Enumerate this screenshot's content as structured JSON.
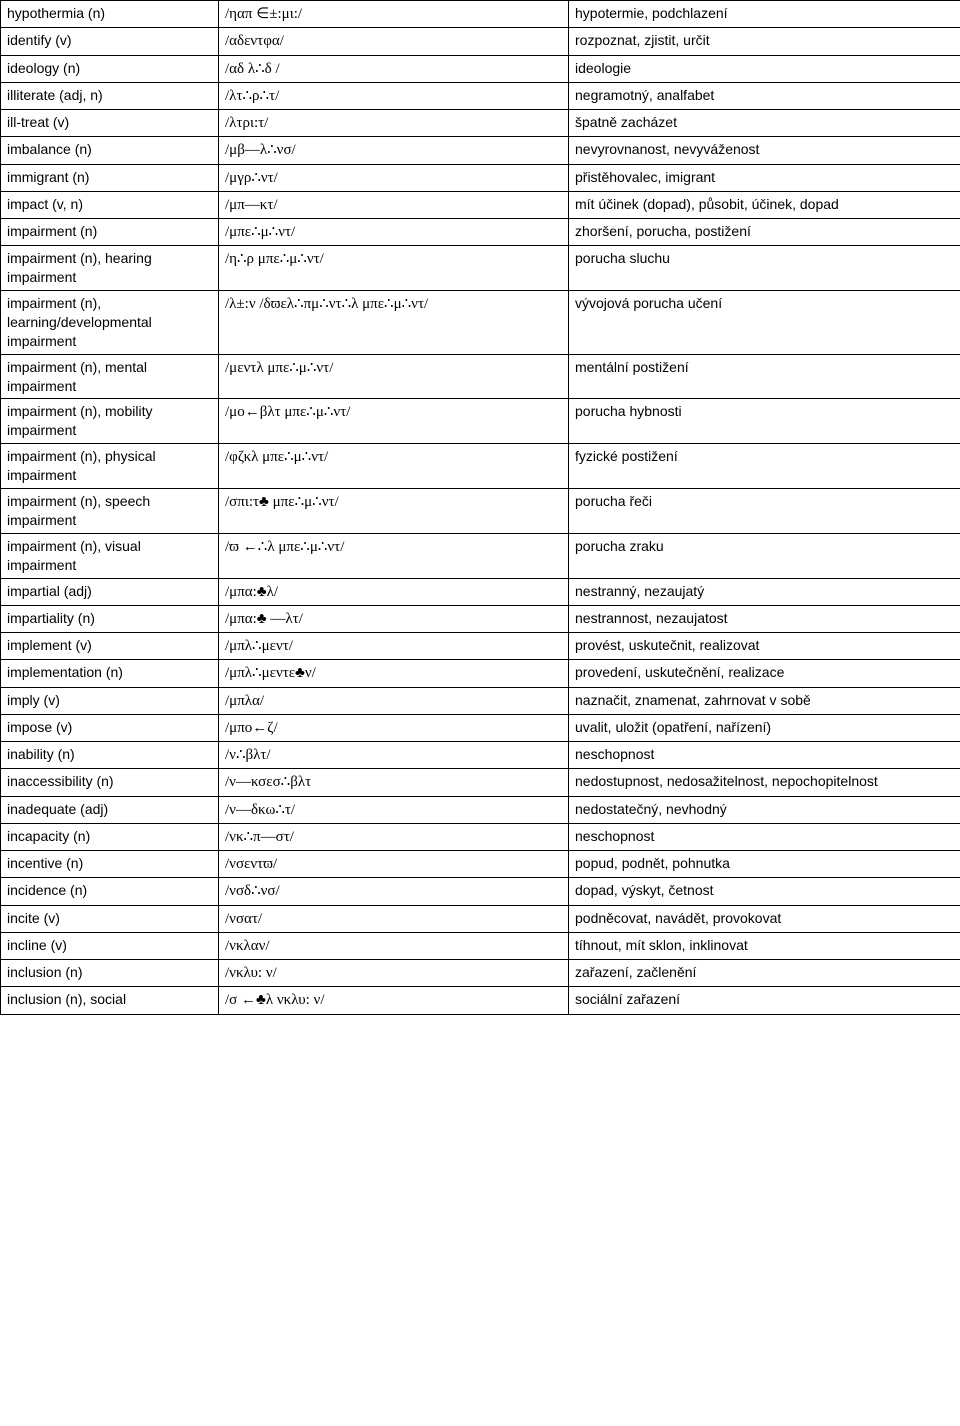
{
  "rows": [
    {
      "term": "hypothermia (n)",
      "ipa": "/ηαπ ∈±:μι:/",
      "cz": "hypotermie, podchlazení"
    },
    {
      "term": "identify (v)",
      "ipa": "/αδεντφα/",
      "cz": "rozpoznat, zjistit, určit"
    },
    {
      "term": "ideology (n)",
      "ipa": "/αδ λ∴δ /",
      "cz": "ideologie"
    },
    {
      "term": "illiterate (adj, n)",
      "ipa": "/λτ∴ρ∴τ/",
      "cz": "negramotný, analfabet"
    },
    {
      "term": "ill-treat (v)",
      "ipa": "/λτρι:τ/",
      "cz": "špatně zacházet"
    },
    {
      "term": "imbalance (n)",
      "ipa": "/μβ—λ∴νσ/",
      "cz": "nevyrovnanost, nevyváženost"
    },
    {
      "term": "immigrant (n)",
      "ipa": "/μγρ∴ντ/",
      "cz": "přistěhovalec, imigrant"
    },
    {
      "term": "impact (v, n)",
      "ipa": "/μπ—κτ/",
      "cz": "mít účinek (dopad), působit, účinek, dopad"
    },
    {
      "term": "impairment (n)",
      "ipa": "/μπε∴μ∴ντ/",
      "cz": "zhoršení, porucha, postižení"
    },
    {
      "term": "impairment (n), hearing impairment",
      "ipa": "/η∴ρ μπε∴μ∴ντ/",
      "cz": "porucha sluchu"
    },
    {
      "term": "impairment (n), learning/developmental impairment",
      "ipa": "/λ±:ν /δϖελ∴πμ∴ντ∴λ μπε∴μ∴ντ/",
      "cz": "vývojová porucha učení"
    },
    {
      "term": "impairment (n), mental impairment",
      "ipa": "/μεντλ μπε∴μ∴ντ/",
      "cz": "mentální postižení"
    },
    {
      "term": "impairment (n), mobility impairment",
      "ipa": "/μο←βλτ μπε∴μ∴ντ/",
      "cz": "porucha hybnosti"
    },
    {
      "term": "impairment (n), physical impairment",
      "ipa": "/φζκλ μπε∴μ∴ντ/",
      "cz": "fyzické postižení"
    },
    {
      "term": "impairment (n), speech impairment",
      "ipa": "/σπι:τ♣ μπε∴μ∴ντ/",
      "cz": "porucha řeči"
    },
    {
      "term": "impairment (n), visual impairment",
      "ipa": "/ϖ ←∴λ μπε∴μ∴ντ/",
      "cz": "porucha zraku"
    },
    {
      "term": "impartial (adj)",
      "ipa": "/μπα:♣λ/",
      "cz": "nestranný, nezaujatý"
    },
    {
      "term": "impartiality (n)",
      "ipa": "/μπα:♣ —λτ/",
      "cz": "nestrannost, nezaujatost"
    },
    {
      "term": "implement (v)",
      "ipa": "/μπλ∴μεντ/",
      "cz": "provést, uskutečnit, realizovat"
    },
    {
      "term": "implementation (n)",
      "ipa": "/μπλ∴μεντε♣ν/",
      "cz": "provedení, uskutečnění, realizace"
    },
    {
      "term": "imply (v)",
      "ipa": "/μπλα/",
      "cz": "naznačit, znamenat, zahrnovat v sobě"
    },
    {
      "term": "impose (v)",
      "ipa": "/μπο←ζ/",
      "cz": "uvalit, uložit (opatření, nařízení)"
    },
    {
      "term": "inability (n)",
      "ipa": "/ν∴βλτ/",
      "cz": "neschopnost"
    },
    {
      "term": "inaccessibility (n)",
      "ipa": "/ν—κσεσ∴βλτ",
      "cz": "nedostupnost, nedosažitelnost, nepochopitelnost"
    },
    {
      "term": "inadequate (adj)",
      "ipa": "/ν—δκω∴τ/",
      "cz": "nedostatečný, nevhodný"
    },
    {
      "term": "incapacity (n)",
      "ipa": "/νκ∴π—στ/",
      "cz": "neschopnost"
    },
    {
      "term": "incentive (n)",
      "ipa": "/νσεντϖ/",
      "cz": "popud, podnět, pohnutka"
    },
    {
      "term": "incidence (n)",
      "ipa": "/νσδ∴νσ/",
      "cz": "dopad, výskyt, četnost"
    },
    {
      "term": "incite (v)",
      "ipa": "/νσατ/",
      "cz": "podněcovat, navádět, provokovat"
    },
    {
      "term": "incline (v)",
      "ipa": "/νκλαν/",
      "cz": "tíhnout, mít sklon, inklinovat"
    },
    {
      "term": "inclusion (n)",
      "ipa": "/νκλυ: ν/",
      "cz": "zařazení, začlenění"
    },
    {
      "term": "inclusion (n), social",
      "ipa": "/σ ←♣λ νκλυ: ν/",
      "cz": "sociální zařazení"
    }
  ]
}
